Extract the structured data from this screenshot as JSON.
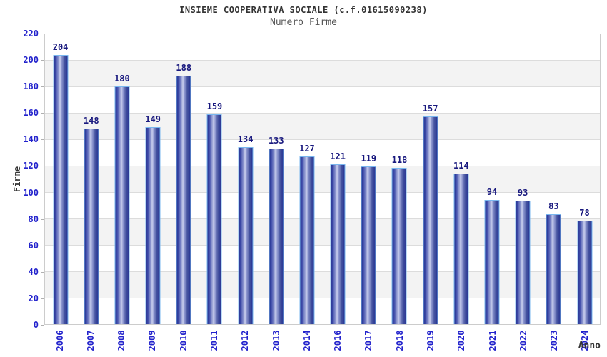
{
  "header": {
    "title": "INSIEME COOPERATIVA SOCIALE (c.f.01615090238)",
    "subtitle": "Numero Firme"
  },
  "chart_data": {
    "type": "bar",
    "title": "INSIEME COOPERATIVA SOCIALE (c.f.01615090238)",
    "subtitle": "Numero Firme",
    "xlabel": "Anno",
    "ylabel": "Firme",
    "categories": [
      "2006",
      "2007",
      "2008",
      "2009",
      "2010",
      "2011",
      "2012",
      "2013",
      "2014",
      "2016",
      "2017",
      "2018",
      "2019",
      "2020",
      "2021",
      "2022",
      "2023",
      "2024"
    ],
    "values": [
      204,
      148,
      180,
      149,
      188,
      159,
      134,
      133,
      127,
      121,
      119,
      118,
      157,
      114,
      94,
      93,
      83,
      78
    ],
    "ylim": [
      0,
      220
    ],
    "ytick_interval": 20,
    "grid": true,
    "band_fill": "alternating",
    "legend": null
  },
  "colors": {
    "accent_blue": "#2222cc",
    "value_navy": "#18187e",
    "bar_dark": "#283593",
    "bar_light": "#c9cfee",
    "bar_border": "#79b7ef",
    "band_gray": "#f3f3f3",
    "gridline": "#dcdcdc",
    "plot_border": "#cccccc",
    "title_color": "#333333",
    "subtitle_color": "#555555"
  }
}
